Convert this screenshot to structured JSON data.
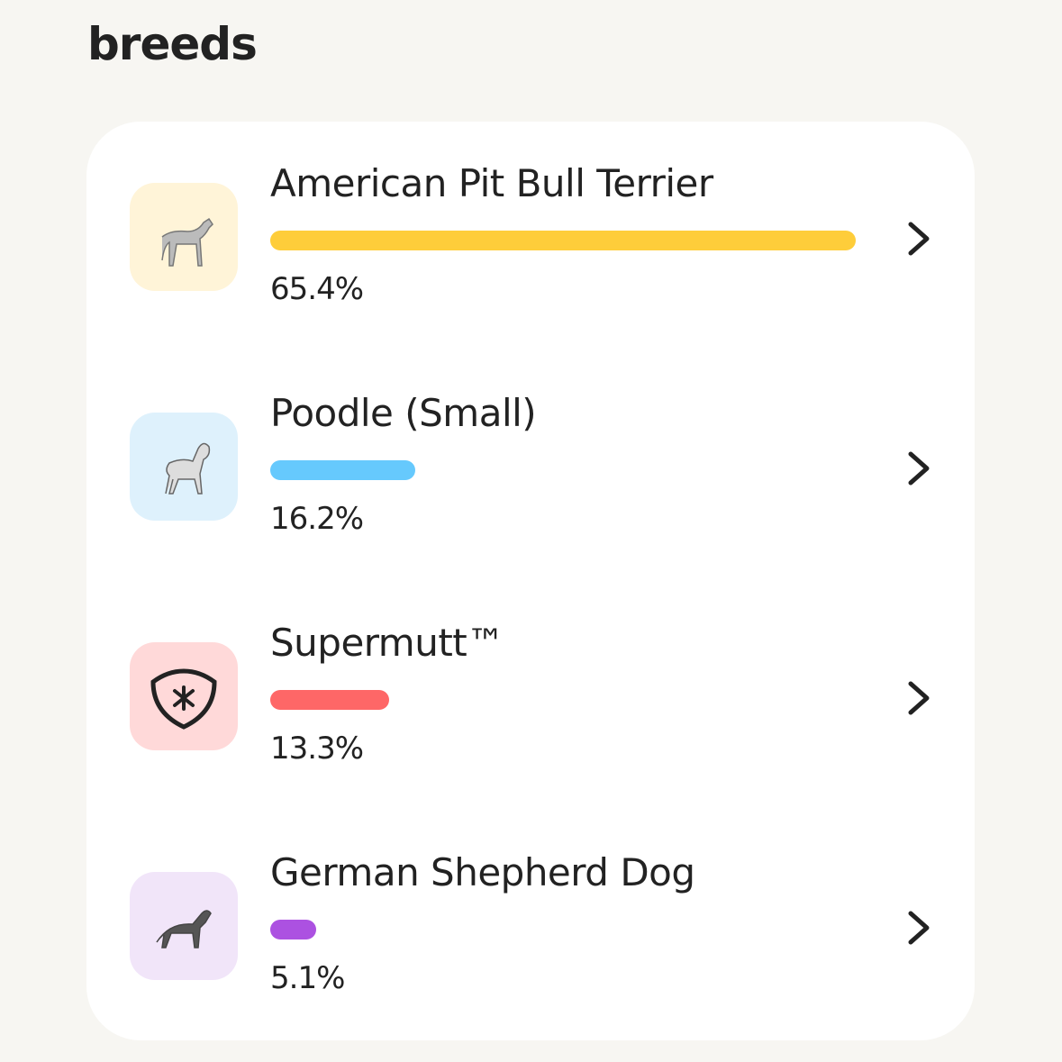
{
  "title": "breeds",
  "items": [
    {
      "name": "American Pit Bull Terrier",
      "value": 65.4,
      "label": "65.4%",
      "color": "#fecd3a"
    },
    {
      "name": "Poodle (Small)",
      "value": 16.2,
      "label": "16.2%",
      "color": "#66c9fd"
    },
    {
      "name": "Supermutt™",
      "value": 13.3,
      "label": "13.3%",
      "color": "#fe6767"
    },
    {
      "name": "German Shepherd Dog",
      "value": 5.1,
      "label": "5.1%",
      "color": "#ac51e1"
    }
  ]
}
